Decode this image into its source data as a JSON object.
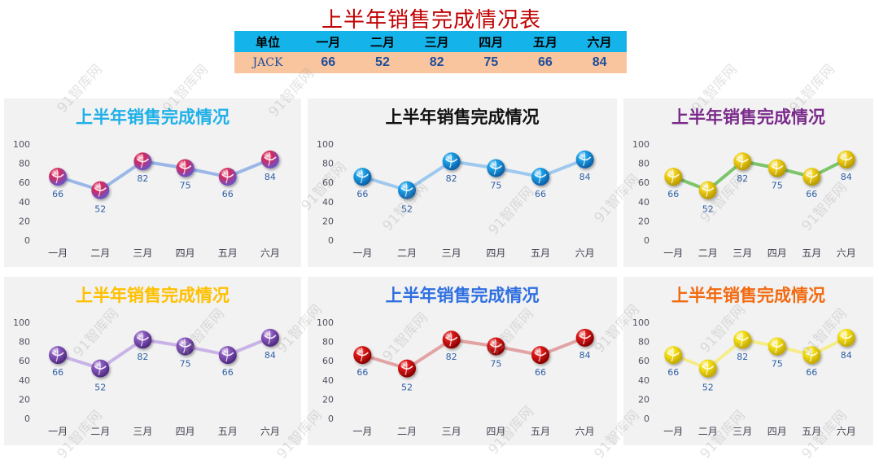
{
  "page": {
    "title": "上半年销售完成情况表",
    "watermark": "91智库网"
  },
  "table": {
    "headers": [
      "单位",
      "一月",
      "二月",
      "三月",
      "四月",
      "五月",
      "六月"
    ],
    "row": {
      "name": "JACK",
      "values": [
        66,
        52,
        82,
        75,
        66,
        84
      ]
    }
  },
  "chart_data": [
    {
      "type": "line",
      "title": "上半年销售完成情况",
      "title_color": "#1fb0e8",
      "line_color": "#9bb7e8",
      "marker_color": "#d8285a",
      "marker_color2": "#6b52c8",
      "categories": [
        "一月",
        "二月",
        "三月",
        "四月",
        "五月",
        "六月"
      ],
      "values": [
        66,
        52,
        82,
        75,
        66,
        84
      ],
      "ylim": [
        0,
        100
      ],
      "yticks": [
        0,
        20,
        40,
        60,
        80,
        100
      ]
    },
    {
      "type": "line",
      "title": "上半年销售完成情况",
      "title_color": "#111111",
      "line_color": "#9ec9ee",
      "marker_color": "#1ca2e8",
      "marker_color2": "#0a5fa8",
      "categories": [
        "一月",
        "二月",
        "三月",
        "四月",
        "五月",
        "六月"
      ],
      "values": [
        66,
        52,
        82,
        75,
        66,
        84
      ],
      "ylim": [
        0,
        100
      ],
      "yticks": [
        0,
        20,
        40,
        60,
        80,
        100
      ]
    },
    {
      "type": "line",
      "title": "上半年销售完成情况",
      "title_color": "#7a2a8a",
      "line_color": "#7cc56a",
      "marker_color": "#f2d21a",
      "marker_color2": "#b89a00",
      "categories": [
        "一月",
        "二月",
        "三月",
        "四月",
        "五月",
        "六月"
      ],
      "values": [
        66,
        52,
        82,
        75,
        66,
        84
      ],
      "ylim": [
        0,
        100
      ],
      "yticks": [
        0,
        20,
        40,
        60,
        80,
        100
      ]
    },
    {
      "type": "line",
      "title": "上半年销售完成情况",
      "title_color": "#ffc000",
      "line_color": "#c9b3e6",
      "marker_color": "#8c5bc0",
      "marker_color2": "#4e2a80",
      "categories": [
        "一月",
        "二月",
        "三月",
        "四月",
        "五月",
        "六月"
      ],
      "values": [
        66,
        52,
        82,
        75,
        66,
        84
      ],
      "ylim": [
        0,
        100
      ],
      "yticks": [
        0,
        20,
        40,
        60,
        80,
        100
      ]
    },
    {
      "type": "line",
      "title": "上半年销售完成情况",
      "title_color": "#2f6fe0",
      "line_color": "#e1a3a3",
      "marker_color": "#e01818",
      "marker_color2": "#8a0000",
      "categories": [
        "一月",
        "二月",
        "三月",
        "四月",
        "五月",
        "六月"
      ],
      "values": [
        66,
        52,
        82,
        75,
        66,
        84
      ],
      "ylim": [
        0,
        100
      ],
      "yticks": [
        0,
        20,
        40,
        60,
        80,
        100
      ]
    },
    {
      "type": "line",
      "title": "上半年销售完成情况",
      "title_color": "#f26a10",
      "line_color": "#f5ec8a",
      "marker_color": "#f5e21a",
      "marker_color2": "#c4a800",
      "categories": [
        "一月",
        "二月",
        "三月",
        "四月",
        "五月",
        "六月"
      ],
      "values": [
        66,
        52,
        82,
        75,
        66,
        84
      ],
      "ylim": [
        0,
        100
      ],
      "yticks": [
        0,
        20,
        40,
        60,
        80,
        100
      ]
    }
  ]
}
